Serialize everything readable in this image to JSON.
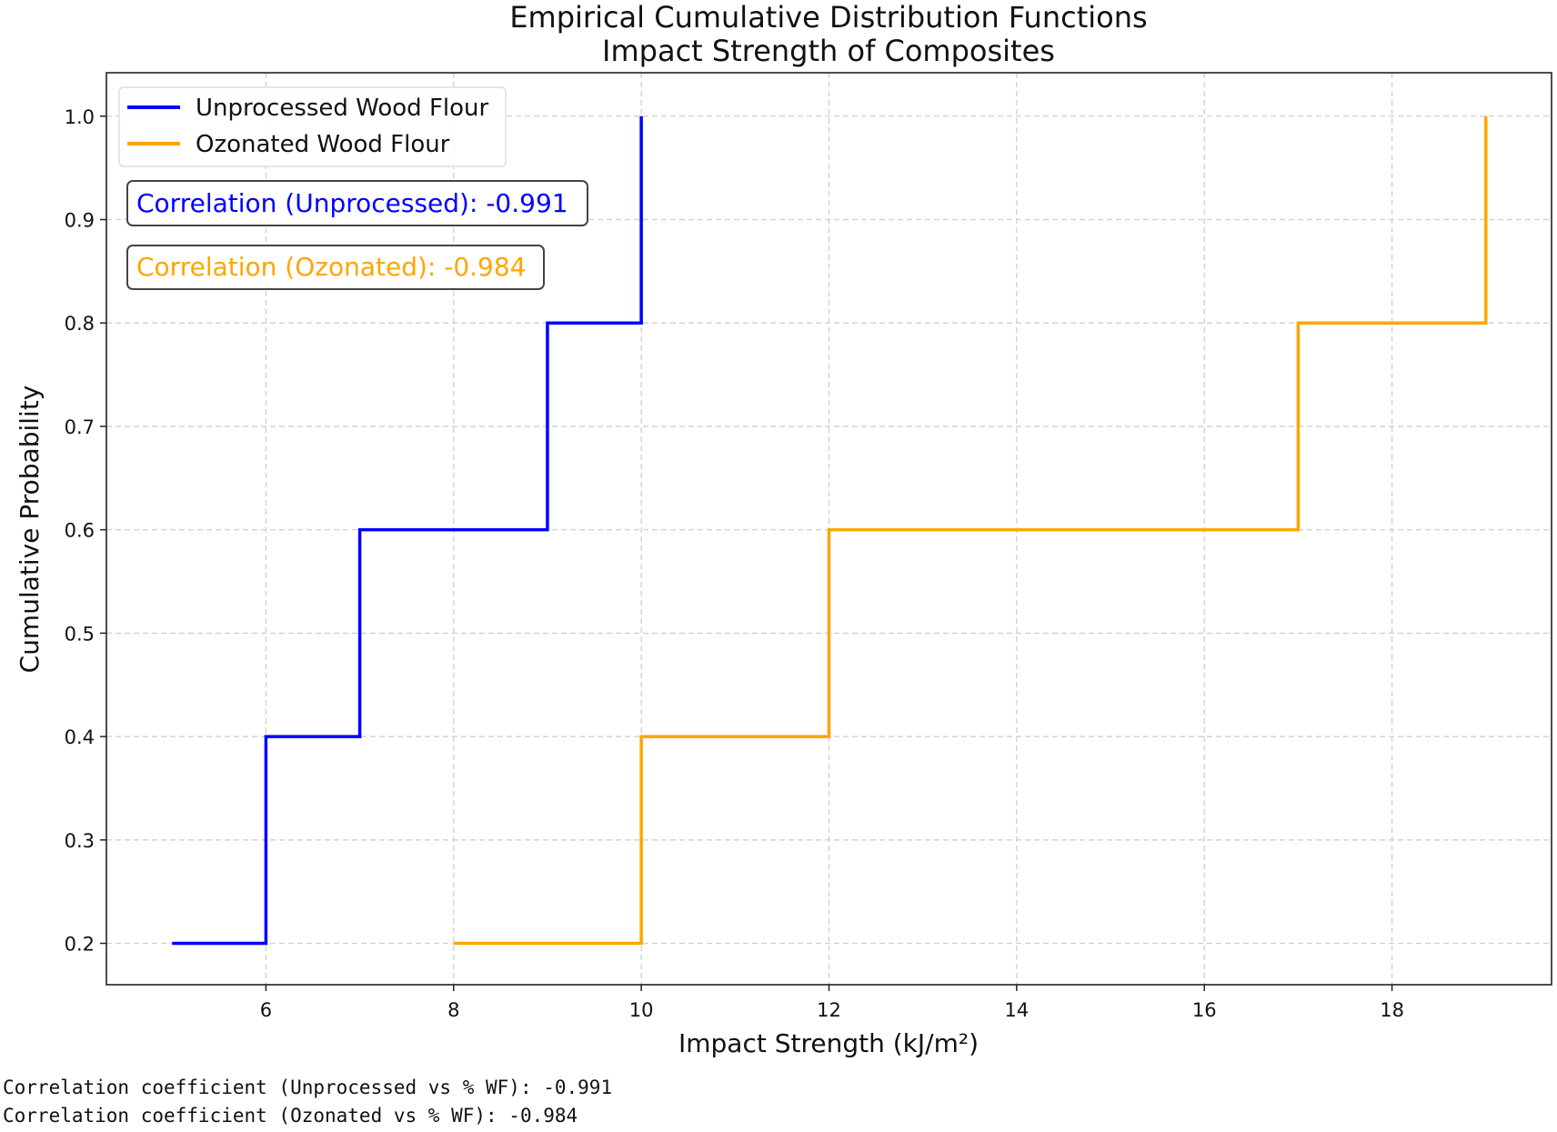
{
  "chart_data": {
    "type": "line",
    "step": "post",
    "title": "Empirical Cumulative Distribution Functions",
    "subtitle": "Impact Strength of Composites",
    "xlabel": "Impact Strength (kJ/m²)",
    "ylabel": "Cumulative Probability",
    "xlim": [
      4.3,
      19.7
    ],
    "ylim": [
      0.16,
      1.042
    ],
    "xticks": [
      6,
      8,
      10,
      12,
      14,
      16,
      18
    ],
    "yticks": [
      0.2,
      0.3,
      0.4,
      0.5,
      0.6,
      0.7,
      0.8,
      0.9,
      1.0
    ],
    "xtick_labels": [
      "6",
      "8",
      "10",
      "12",
      "14",
      "16",
      "18"
    ],
    "ytick_labels": [
      "0.2",
      "0.3",
      "0.4",
      "0.5",
      "0.6",
      "0.7",
      "0.8",
      "0.9",
      "1.0"
    ],
    "grid": true,
    "legend_position": "top-left",
    "series": [
      {
        "name": "Unprocessed Wood Flour",
        "color": "#0000ff",
        "x": [
          5,
          6,
          7,
          9,
          10
        ],
        "y": [
          0.2,
          0.4,
          0.6,
          0.8,
          1.0
        ]
      },
      {
        "name": "Ozonated Wood Flour",
        "color": "#ffa500",
        "x": [
          8,
          10,
          12,
          17,
          19
        ],
        "y": [
          0.2,
          0.4,
          0.6,
          0.8,
          1.0
        ]
      }
    ],
    "annotations": [
      {
        "text": "Correlation (Unprocessed): -0.991",
        "color": "#0000ff"
      },
      {
        "text": "Correlation (Ozonated): -0.984",
        "color": "#ffa500"
      }
    ]
  },
  "console_output": [
    "Correlation coefficient (Unprocessed vs % WF): -0.991",
    "Correlation coefficient (Ozonated vs % WF): -0.984"
  ]
}
